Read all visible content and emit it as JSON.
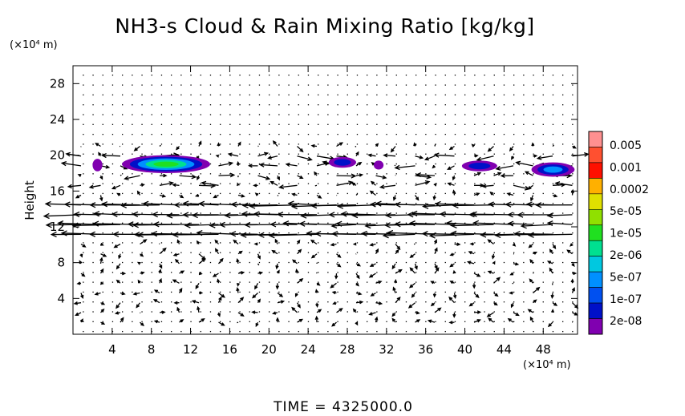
{
  "chart_data": {
    "type": "contour",
    "title": "NH3-s Cloud & Rain Mixing Ratio [kg/kg]",
    "y_unit": "(×10⁴ m)",
    "x_unit": "(×10⁴ m)",
    "ylabel": "Height",
    "xlabel": "",
    "xlim": [
      0,
      51.5
    ],
    "ylim": [
      0,
      30
    ],
    "x_ticks": [
      4,
      8,
      12,
      16,
      20,
      24,
      28,
      32,
      36,
      40,
      44,
      48
    ],
    "y_ticks": [
      4,
      8,
      12,
      16,
      20,
      24,
      28
    ],
    "footer": "TIME = 4325000.0",
    "colorbar": {
      "labels": [
        "0.005",
        "0.001",
        "0.0002",
        "5e-05",
        "1e-05",
        "2e-06",
        "5e-07",
        "1e-07",
        "2e-08"
      ],
      "colors": [
        "#ff9090",
        "#ff5030",
        "#ff1000",
        "#ffb000",
        "#e0e000",
        "#90e000",
        "#20e020",
        "#00e090",
        "#00c8e0",
        "#0090ff",
        "#0050f0",
        "#0010c8",
        "#8000b0"
      ]
    },
    "cloud_patches": [
      {
        "cx": 2.5,
        "cy": 18.9,
        "rx": 0.5,
        "ry": 0.7
      },
      {
        "cx": 9.5,
        "cy": 19.0,
        "rx": 4.5,
        "ry": 1.0
      },
      {
        "cx": 27.5,
        "cy": 19.2,
        "rx": 1.4,
        "ry": 0.6
      },
      {
        "cx": 31.2,
        "cy": 18.9,
        "rx": 0.5,
        "ry": 0.5
      },
      {
        "cx": 41.5,
        "cy": 18.8,
        "rx": 1.8,
        "ry": 0.6
      },
      {
        "cx": 49.0,
        "cy": 18.4,
        "rx": 2.2,
        "ry": 0.8
      }
    ]
  }
}
